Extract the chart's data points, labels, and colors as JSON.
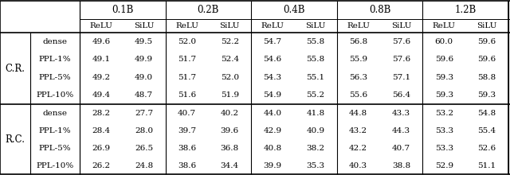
{
  "col_groups": [
    "0.1B",
    "0.2B",
    "0.4B",
    "0.8B",
    "1.2B"
  ],
  "sub_cols": [
    "ReLU",
    "SiLU"
  ],
  "row_groups": [
    "C.R.",
    "R.C."
  ],
  "row_labels": [
    "dense",
    "PPL-1%",
    "PPL-5%",
    "PPL-10%"
  ],
  "CR_data": [
    [
      49.6,
      49.5,
      52.0,
      52.2,
      54.7,
      55.8,
      56.8,
      57.6,
      60.0,
      59.6
    ],
    [
      49.1,
      49.9,
      51.7,
      52.4,
      54.6,
      55.8,
      55.9,
      57.6,
      59.6,
      59.6
    ],
    [
      49.2,
      49.0,
      51.7,
      52.0,
      54.3,
      55.1,
      56.3,
      57.1,
      59.3,
      58.8
    ],
    [
      49.4,
      48.7,
      51.6,
      51.9,
      54.9,
      55.2,
      55.6,
      56.4,
      59.3,
      59.3
    ]
  ],
  "RC_data": [
    [
      28.2,
      27.7,
      40.7,
      40.2,
      44.0,
      41.8,
      44.8,
      43.3,
      53.2,
      54.8
    ],
    [
      28.4,
      28.0,
      39.7,
      39.6,
      42.9,
      40.9,
      43.2,
      44.3,
      53.3,
      55.4
    ],
    [
      26.9,
      26.5,
      38.6,
      36.8,
      40.8,
      38.2,
      42.2,
      40.7,
      53.3,
      52.6
    ],
    [
      26.2,
      24.8,
      38.6,
      34.4,
      39.9,
      35.3,
      40.3,
      38.8,
      52.9,
      51.1
    ]
  ],
  "bg_color": "#ffffff",
  "line_color": "#000000",
  "font_size": 7.5,
  "header_font_size": 8.5,
  "group_label_fontsize": 8.5,
  "row_label_fontsize": 7.5
}
